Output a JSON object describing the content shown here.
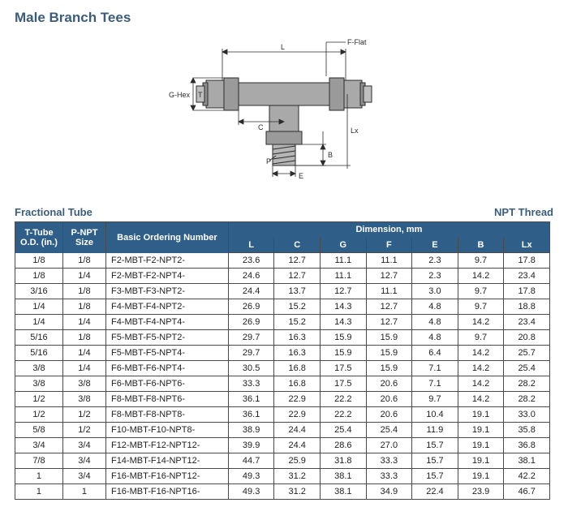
{
  "title": "Male Branch Tees",
  "caption_left": "Fractional Tube",
  "caption_right": "NPT Thread",
  "diagram_labels": {
    "L": "L",
    "FFlat": "F-Flat",
    "GHex": "G-Hex",
    "T": "T",
    "C": "C",
    "P": "P",
    "E": "E",
    "B": "B",
    "Lx": "Lx"
  },
  "header": {
    "od": "T-Tube O.D. (in.)",
    "npt": "P-NPT Size",
    "part": "Basic Ordering Number",
    "dim_group": "Dimension, mm",
    "dims": [
      "L",
      "C",
      "G",
      "F",
      "E",
      "B",
      "Lx"
    ]
  },
  "rows": [
    {
      "od": "1/8",
      "npt": "1/8",
      "part": "F2-MBT-F2-NPT2-",
      "L": "23.6",
      "C": "12.7",
      "G": "11.1",
      "F": "11.1",
      "E": "2.3",
      "B": "9.7",
      "Lx": "17.8"
    },
    {
      "od": "1/8",
      "npt": "1/4",
      "part": "F2-MBT-F2-NPT4-",
      "L": "24.6",
      "C": "12.7",
      "G": "11.1",
      "F": "12.7",
      "E": "2.3",
      "B": "14.2",
      "Lx": "23.4"
    },
    {
      "od": "3/16",
      "npt": "1/8",
      "part": "F3-MBT-F3-NPT2-",
      "L": "24.4",
      "C": "13.7",
      "G": "12.7",
      "F": "11.1",
      "E": "3.0",
      "B": "9.7",
      "Lx": "17.8"
    },
    {
      "od": "1/4",
      "npt": "1/8",
      "part": "F4-MBT-F4-NPT2-",
      "L": "26.9",
      "C": "15.2",
      "G": "14.3",
      "F": "12.7",
      "E": "4.8",
      "B": "9.7",
      "Lx": "18.8"
    },
    {
      "od": "1/4",
      "npt": "1/4",
      "part": "F4-MBT-F4-NPT4-",
      "L": "26.9",
      "C": "15.2",
      "G": "14.3",
      "F": "12.7",
      "E": "4.8",
      "B": "14.2",
      "Lx": "23.4"
    },
    {
      "od": "5/16",
      "npt": "1/8",
      "part": "F5-MBT-F5-NPT2-",
      "L": "29.7",
      "C": "16.3",
      "G": "15.9",
      "F": "15.9",
      "E": "4.8",
      "B": "9.7",
      "Lx": "20.8"
    },
    {
      "od": "5/16",
      "npt": "1/4",
      "part": "F5-MBT-F5-NPT4-",
      "L": "29.7",
      "C": "16.3",
      "G": "15.9",
      "F": "15.9",
      "E": "6.4",
      "B": "14.2",
      "Lx": "25.7"
    },
    {
      "od": "3/8",
      "npt": "1/4",
      "part": "F6-MBT-F6-NPT4-",
      "L": "30.5",
      "C": "16.8",
      "G": "17.5",
      "F": "15.9",
      "E": "7.1",
      "B": "14.2",
      "Lx": "25.4"
    },
    {
      "od": "3/8",
      "npt": "3/8",
      "part": "F6-MBT-F6-NPT6-",
      "L": "33.3",
      "C": "16.8",
      "G": "17.5",
      "F": "20.6",
      "E": "7.1",
      "B": "14.2",
      "Lx": "28.2"
    },
    {
      "od": "1/2",
      "npt": "3/8",
      "part": "F8-MBT-F8-NPT6-",
      "L": "36.1",
      "C": "22.9",
      "G": "22.2",
      "F": "20.6",
      "E": "9.7",
      "B": "14.2",
      "Lx": "28.2"
    },
    {
      "od": "1/2",
      "npt": "1/2",
      "part": "F8-MBT-F8-NPT8-",
      "L": "36.1",
      "C": "22.9",
      "G": "22.2",
      "F": "20.6",
      "E": "10.4",
      "B": "19.1",
      "Lx": "33.0"
    },
    {
      "od": "5/8",
      "npt": "1/2",
      "part": "F10-MBT-F10-NPT8-",
      "L": "38.9",
      "C": "24.4",
      "G": "25.4",
      "F": "25.4",
      "E": "11.9",
      "B": "19.1",
      "Lx": "35.8"
    },
    {
      "od": "3/4",
      "npt": "3/4",
      "part": "F12-MBT-F12-NPT12-",
      "L": "39.9",
      "C": "24.4",
      "G": "28.6",
      "F": "27.0",
      "E": "15.7",
      "B": "19.1",
      "Lx": "36.8"
    },
    {
      "od": "7/8",
      "npt": "3/4",
      "part": "F14-MBT-F14-NPT12-",
      "L": "44.7",
      "C": "25.9",
      "G": "31.8",
      "F": "33.3",
      "E": "15.7",
      "B": "19.1",
      "Lx": "38.1"
    },
    {
      "od": "1",
      "npt": "3/4",
      "part": "F16-MBT-F16-NPT12-",
      "L": "49.3",
      "C": "31.2",
      "G": "38.1",
      "F": "33.3",
      "E": "15.7",
      "B": "19.1",
      "Lx": "42.2"
    },
    {
      "od": "1",
      "npt": "1",
      "part": "F16-MBT-F16-NPT16-",
      "L": "49.3",
      "C": "31.2",
      "G": "38.1",
      "F": "34.9",
      "E": "22.4",
      "B": "23.9",
      "Lx": "46.7"
    }
  ],
  "colors": {
    "heading": "#3b5c7a",
    "th_bg": "#2f5f88",
    "th_fg": "#ffffff",
    "border": "#4a4a4a",
    "diagram_fill": "#a9a9a9",
    "diagram_stroke": "#2b2b2b"
  }
}
